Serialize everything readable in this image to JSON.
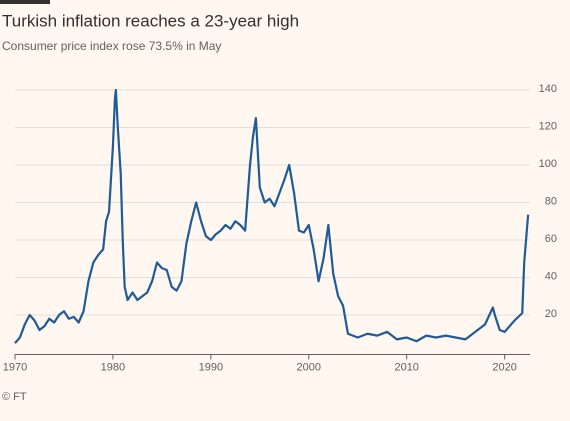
{
  "chart_data": {
    "type": "line",
    "title": "Turkish inflation reaches a 23-year high",
    "subtitle": "Consumer price index rose 73.5% in May",
    "source": "© FT",
    "x": [
      1970,
      1970.5,
      1971,
      1971.5,
      1972,
      1972.5,
      1973,
      1973.5,
      1974,
      1974.5,
      1975,
      1975.5,
      1976,
      1976.5,
      1977,
      1977.5,
      1978,
      1978.5,
      1979,
      1979.3,
      1979.6,
      1980,
      1980.2,
      1980.3,
      1980.5,
      1980.8,
      1981,
      1981.2,
      1981.5,
      1982,
      1982.5,
      1983,
      1983.5,
      1984,
      1984.5,
      1985,
      1985.5,
      1986,
      1986.5,
      1987,
      1987.5,
      1988,
      1988.5,
      1989,
      1989.5,
      1990,
      1990.5,
      1991,
      1991.5,
      1992,
      1992.5,
      1993,
      1993.5,
      1994,
      1994.3,
      1994.6,
      1995,
      1995.5,
      1996,
      1996.5,
      1997,
      1997.5,
      1998,
      1998.5,
      1999,
      1999.5,
      2000,
      2000.5,
      2001,
      2001.5,
      2002,
      2002.5,
      2003,
      2003.5,
      2004,
      2004.5,
      2005,
      2006,
      2007,
      2008,
      2009,
      2010,
      2011,
      2012,
      2013,
      2014,
      2015,
      2016,
      2017,
      2018,
      2018.8,
      2019,
      2019.5,
      2020,
      2021,
      2021.8,
      2022,
      2022.4
    ],
    "series": [
      {
        "name": "Consumer price index",
        "color": "#1f5a99",
        "values": [
          5,
          8,
          15,
          20,
          17,
          12,
          14,
          18,
          16,
          20,
          22,
          18,
          19,
          16,
          22,
          38,
          48,
          52,
          55,
          70,
          75,
          110,
          135,
          140,
          120,
          95,
          60,
          35,
          28,
          32,
          28,
          30,
          32,
          38,
          48,
          45,
          44,
          35,
          33,
          38,
          58,
          70,
          80,
          70,
          62,
          60,
          63,
          65,
          68,
          66,
          70,
          68,
          65,
          100,
          115,
          125,
          88,
          80,
          82,
          78,
          85,
          92,
          100,
          85,
          65,
          64,
          68,
          55,
          38,
          50,
          68,
          42,
          30,
          25,
          10,
          9,
          8,
          10,
          9,
          11,
          7,
          8,
          6,
          9,
          8,
          9,
          8,
          7,
          11,
          15,
          24,
          20,
          12,
          11,
          17,
          21,
          48,
          73.5
        ]
      }
    ],
    "xlim": [
      1970,
      2023
    ],
    "xticks": [
      1970,
      1980,
      1990,
      2000,
      2010,
      2020
    ],
    "ylim": [
      0,
      150
    ],
    "yticks": [
      20,
      40,
      60,
      80,
      100,
      120,
      140
    ],
    "grid": true
  }
}
